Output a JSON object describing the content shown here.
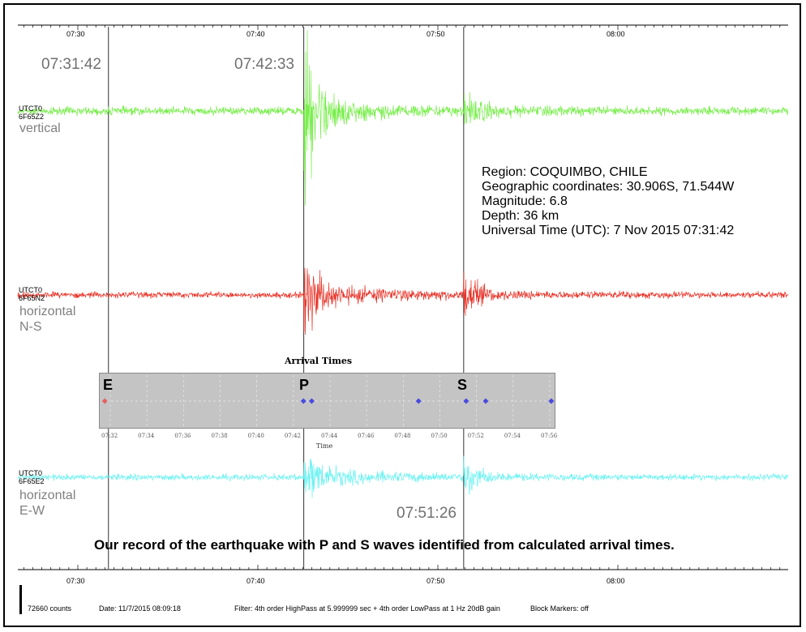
{
  "chart_data": {
    "type": "line",
    "time_axis": {
      "ticks": [
        "07:30",
        "07:40",
        "07:50",
        "08:00"
      ]
    },
    "markers": [
      {
        "name": "E",
        "time": "07:31:42",
        "label": "07:31:42"
      },
      {
        "name": "P",
        "time": "07:42:33",
        "label": "07:42:33"
      },
      {
        "name": "S",
        "time": "07:51:26",
        "label": "07:51:26"
      }
    ],
    "channels": [
      {
        "code_line1": "UTCT0",
        "code_line2": "6F65Z2",
        "label_line1": "vertical",
        "label_line2": "",
        "color": "#77ee4a"
      },
      {
        "code_line1": "UTCT0",
        "code_line2": "6F65N2",
        "label_line1": "horizontal",
        "label_line2": "N-S",
        "color": "#e8352a"
      },
      {
        "code_line1": "UTCT0",
        "code_line2": "6F65E2",
        "label_line1": "horizontal",
        "label_line2": "E-W",
        "color": "#6ff2f2"
      }
    ],
    "event_info": [
      "Region: COQUIMBO, CHILE",
      "Geographic coordinates: 30.906S,  71.544W",
      "Magnitude: 6.8",
      "Depth: 36 km",
      "Universal Time (UTC): 7 Nov 2015  07:31:42"
    ],
    "caption": "Our record of the earthquake with P and S waves identified from calculated arrival times.",
    "arrival_times": {
      "title": "Arrival Times",
      "x_title": "Time",
      "ticks": [
        "07:32",
        "07:34",
        "07:36",
        "07:38",
        "07:40",
        "07:42",
        "07:44",
        "07:46",
        "07:48",
        "07:50",
        "07:52",
        "07:54",
        "07:56"
      ],
      "letters": {
        "E": "E",
        "P": "P",
        "S": "S"
      },
      "points": [
        {
          "time": "07:31:42",
          "color": "#e06060"
        },
        {
          "time": "07:42:33",
          "color": "#4a4ae0"
        },
        {
          "time": "07:43:00",
          "color": "#4a4ae0"
        },
        {
          "time": "07:48:50",
          "color": "#4a4ae0"
        },
        {
          "time": "07:51:26",
          "color": "#4a4ae0"
        },
        {
          "time": "07:52:30",
          "color": "#4a4ae0"
        },
        {
          "time": "07:56:05",
          "color": "#4a4ae0"
        }
      ]
    }
  },
  "footer": {
    "counts": "72660 counts",
    "date": "Date: 11/7/2015 08:09:18",
    "filter": "Filter: 4th order HighPass at 5.999999 sec + 4th order LowPass at 1 Hz 20dB gain",
    "block_markers": "Block Markers: off"
  }
}
